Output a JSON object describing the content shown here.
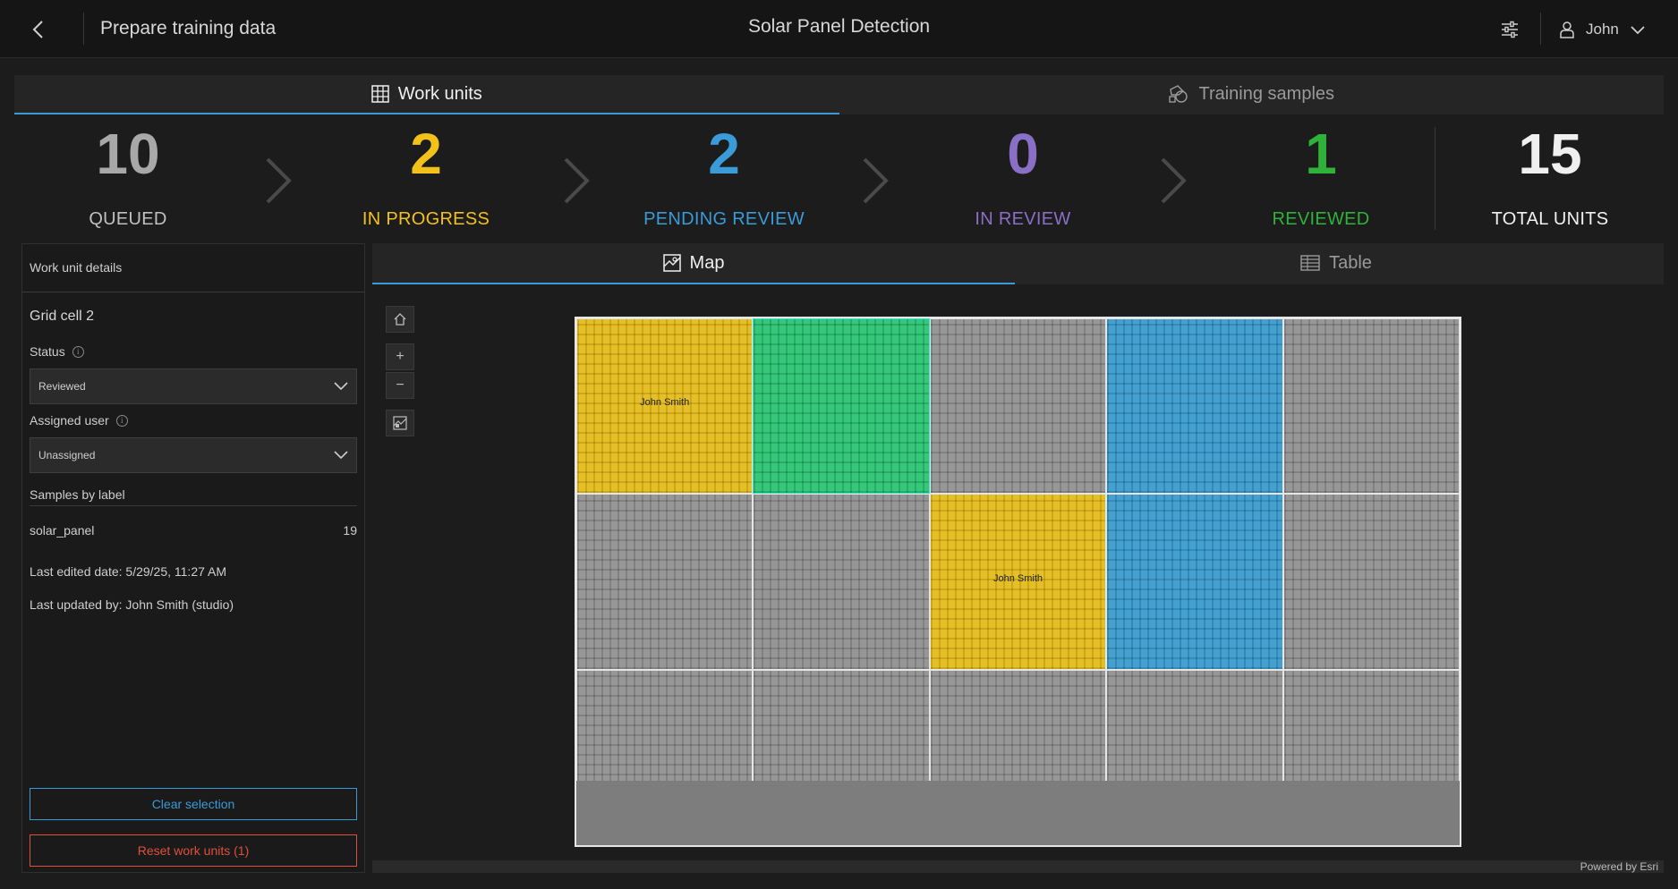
{
  "header": {
    "page_title": "Prepare training data",
    "app_title": "Solar Panel Detection",
    "user_name": "John"
  },
  "top_tabs": [
    {
      "label": "Work units",
      "active": true,
      "icon": "grid-icon"
    },
    {
      "label": "Training samples",
      "active": false,
      "icon": "shapes-icon"
    }
  ],
  "stats": [
    {
      "value": "10",
      "label": "QUEUED",
      "color": "#a8a8a8"
    },
    {
      "value": "2",
      "label": "IN PROGRESS",
      "color": "#f2c21b"
    },
    {
      "value": "2",
      "label": "PENDING REVIEW",
      "color": "#3a9bd8"
    },
    {
      "value": "0",
      "label": "IN REVIEW",
      "color": "#8a6fc7"
    },
    {
      "value": "1",
      "label": "REVIEWED",
      "color": "#2fb23a"
    },
    {
      "value": "15",
      "label": "TOTAL UNITS",
      "color": "#f0f0f0"
    }
  ],
  "details": {
    "header": "Work unit details",
    "title": "Grid cell 2",
    "status_label": "Status",
    "status_value": "Reviewed",
    "assigned_label": "Assigned user",
    "assigned_value": "Unassigned",
    "samples_title": "Samples by label",
    "samples": [
      {
        "label": "solar_panel",
        "count": "19"
      }
    ],
    "last_edited": "Last edited date: 5/29/25, 11:27 AM",
    "last_updated": "Last updated by: John Smith (studio)",
    "clear_label": "Clear selection",
    "reset_label": "Reset work units (1)"
  },
  "view_tabs": [
    {
      "label": "Map",
      "active": true,
      "icon": "map-icon"
    },
    {
      "label": "Table",
      "active": false,
      "icon": "table-icon"
    }
  ],
  "map": {
    "cells": [
      {
        "status": "in-progress",
        "label": "John Smith"
      },
      {
        "status": "reviewed",
        "label": "",
        "selected": true
      },
      {
        "status": "queued",
        "label": ""
      },
      {
        "status": "pending-review",
        "label": ""
      },
      {
        "status": "queued",
        "label": ""
      },
      {
        "status": "queued",
        "label": ""
      },
      {
        "status": "queued",
        "label": ""
      },
      {
        "status": "in-progress",
        "label": "John Smith"
      },
      {
        "status": "pending-review",
        "label": ""
      },
      {
        "status": "queued",
        "label": ""
      },
      {
        "status": "queued",
        "label": ""
      },
      {
        "status": "queued",
        "label": ""
      },
      {
        "status": "queued",
        "label": ""
      },
      {
        "status": "queued",
        "label": ""
      },
      {
        "status": "queued",
        "label": ""
      }
    ],
    "status_colors": {
      "queued": "#8a8a8a",
      "in-progress": "#e2b70f",
      "pending-review": "#2f95c9",
      "reviewed": "#1fbf6a"
    },
    "powered_by": "Powered by Esri"
  }
}
